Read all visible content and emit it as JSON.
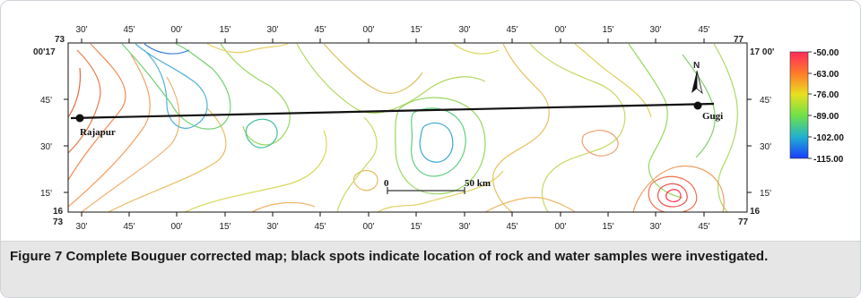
{
  "map": {
    "top_lon_labels": [
      "30'",
      "45'",
      "00'",
      "15'",
      "30'",
      "45'",
      "00'",
      "15'",
      "30'",
      "45'",
      "00'",
      "15'",
      "30'",
      "45'"
    ],
    "bottom_lon_labels": [
      "30'",
      "45'",
      "00'",
      "15'",
      "30'",
      "45'",
      "00'",
      "15'",
      "30'",
      "45'",
      "00'",
      "15'",
      "30'",
      "45'"
    ],
    "left_lat_labels": [
      "45'",
      "30'",
      "15'"
    ],
    "right_lat_labels": [
      "45'",
      "30'",
      "15'"
    ],
    "corners": {
      "top_left_deg": "73",
      "top_left_lat": "00'17",
      "top_right_deg": "77",
      "top_right_lat": "17 00'",
      "bottom_left_lat": "16",
      "bottom_left_deg": "73",
      "bottom_right_lat": "16",
      "bottom_right_deg": "77"
    },
    "places": [
      {
        "name": "Rajapur"
      },
      {
        "name": "Gugi"
      }
    ],
    "north_label": "N",
    "scale_bar": {
      "start": "0",
      "end": "50 km"
    }
  },
  "legend": {
    "labels": [
      "-50.00",
      "-63.00",
      "-76.00",
      "-89.00",
      "-102.00",
      "-115.00"
    ],
    "colors": [
      "#ff2a3c",
      "#ff8a2a",
      "#e8e020",
      "#6ee04a",
      "#20b0d0",
      "#1a3cff"
    ]
  },
  "caption": {
    "label": "Figure 7",
    "text": " Complete Bouguer corrected map; black spots indicate location of rock and water samples were investigated."
  }
}
